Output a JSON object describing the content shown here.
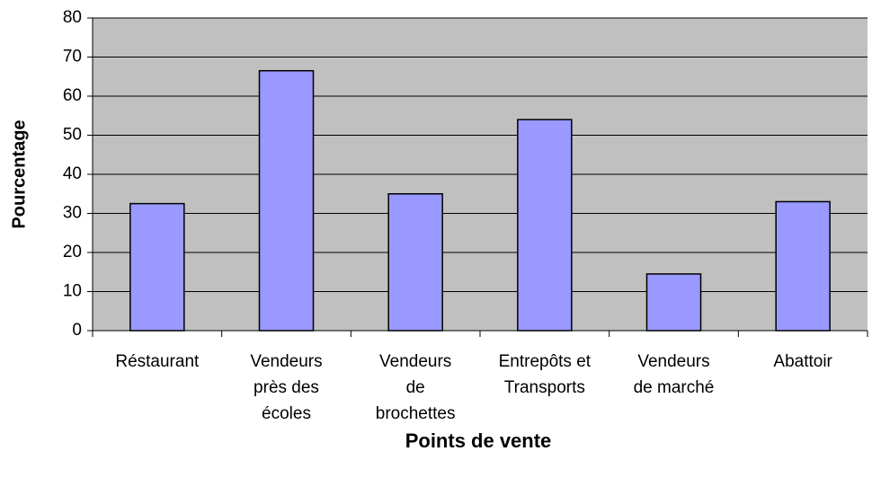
{
  "chart_data": {
    "type": "bar",
    "title": null,
    "x_label": "Points de vente",
    "y_label": "Pourcentage",
    "categories": [
      "Réstaurant",
      "Vendeurs\nprès des\nécoles",
      "Vendeurs\nde\nbrochettes",
      "Entrepôts et\nTransports",
      "Vendeurs\nde marché",
      "Abattoir"
    ],
    "values": [
      32.5,
      66.5,
      35,
      54,
      14.5,
      33
    ],
    "color": "#9999ff",
    "ylim": [
      0,
      80
    ],
    "yticks": [
      0,
      10,
      20,
      30,
      40,
      50,
      60,
      70,
      80
    ],
    "grid": true
  }
}
